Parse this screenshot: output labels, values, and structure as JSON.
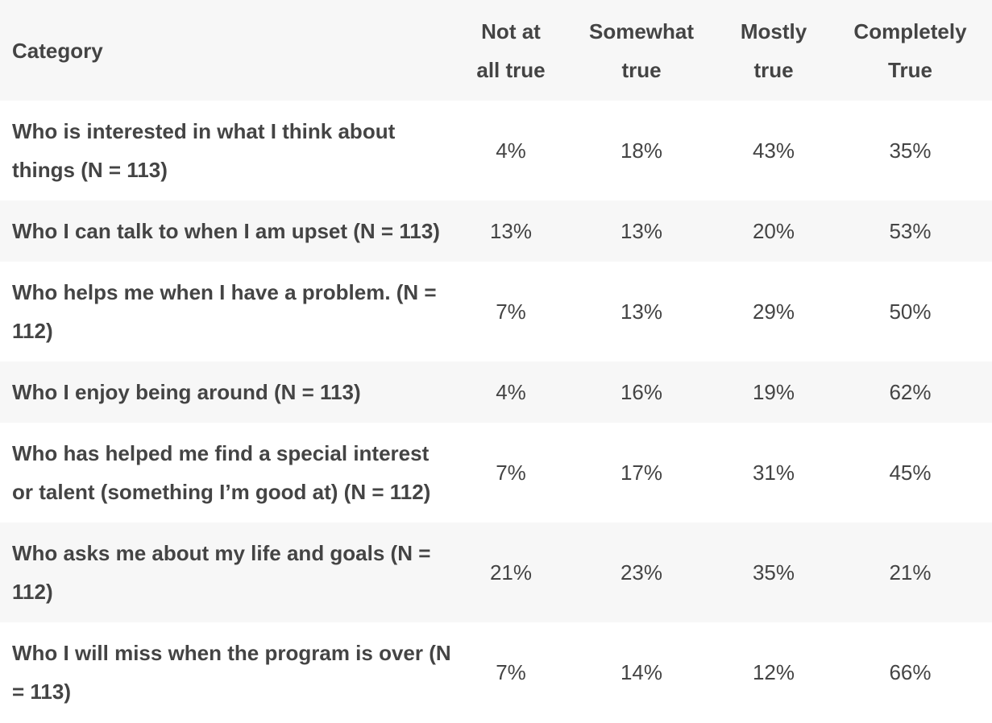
{
  "table": {
    "headers": {
      "category": "Category",
      "col1": [
        "Not at",
        "all true"
      ],
      "col2": [
        "Somewhat",
        "true"
      ],
      "col3": [
        "Mostly",
        "true"
      ],
      "col4": [
        "Completely",
        "True"
      ]
    },
    "rows": [
      {
        "category": "Who is interested in what I think about things (N = 113)",
        "not_at_all": "4%",
        "somewhat": "18%",
        "mostly": "43%",
        "completely": "35%"
      },
      {
        "category": "Who I can talk to when I am upset (N = 113)",
        "not_at_all": "13%",
        "somewhat": "13%",
        "mostly": "20%",
        "completely": "53%"
      },
      {
        "category": "Who helps me when I have a problem. (N = 112)",
        "not_at_all": "7%",
        "somewhat": "13%",
        "mostly": "29%",
        "completely": "50%"
      },
      {
        "category": "Who I enjoy being around (N = 113)",
        "not_at_all": "4%",
        "somewhat": "16%",
        "mostly": "19%",
        "completely": "62%"
      },
      {
        "category": "Who has helped me find a special interest or talent (something I’m good at) (N = 112)",
        "not_at_all": "7%",
        "somewhat": "17%",
        "mostly": "31%",
        "completely": "45%"
      },
      {
        "category": "Who asks me about my life and goals (N = 112)",
        "not_at_all": "21%",
        "somewhat": "23%",
        "mostly": "35%",
        "completely": "21%"
      },
      {
        "category": "Who I will miss when the program is over (N = 113)",
        "not_at_all": "7%",
        "somewhat": "14%",
        "mostly": "12%",
        "completely": "66%"
      }
    ]
  },
  "colors": {
    "text": "#444444",
    "stripe": "#f7f7f7",
    "background": "#ffffff"
  }
}
